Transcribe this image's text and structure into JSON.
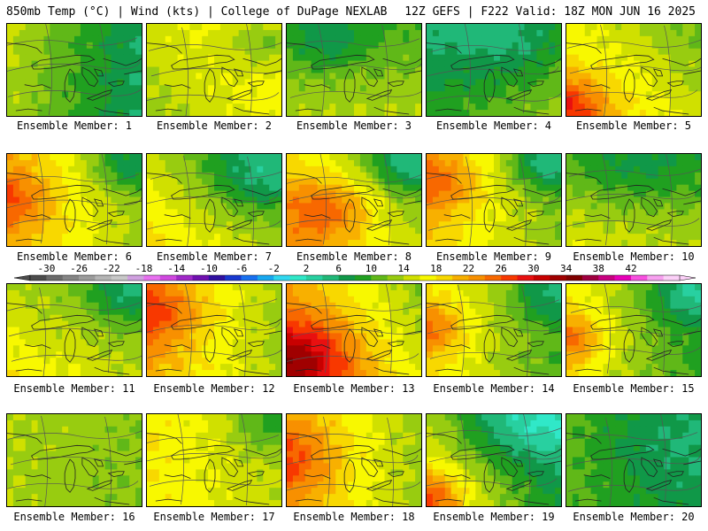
{
  "header": {
    "left": "850mb Temp (°C) | Wind (kts) | College of DuPage NEXLAB",
    "right": "12Z GEFS | F222 Valid: 18Z MON JUN 16 2025"
  },
  "members": [
    {
      "label": "Ensemble Member: 1",
      "base": 10,
      "grad": [
        -4,
        0
      ],
      "blobs": [
        [
          0.1,
          0.1,
          0.4,
          0.5
        ]
      ]
    },
    {
      "label": "Ensemble Member: 2",
      "base": 16,
      "grad": [
        2,
        -1
      ],
      "blobs": [
        [
          0.9,
          0.2,
          0.3,
          -6
        ]
      ]
    },
    {
      "label": "Ensemble Member: 3",
      "base": 12,
      "grad": [
        0,
        2
      ],
      "blobs": [
        [
          0.3,
          0.2,
          0.3,
          -4
        ]
      ]
    },
    {
      "label": "Ensemble Member: 4",
      "base": 9,
      "grad": [
        2,
        2
      ],
      "blobs": [
        [
          0.6,
          0.2,
          0.4,
          -3
        ]
      ]
    },
    {
      "label": "Ensemble Member: 5",
      "base": 16,
      "grad": [
        -3,
        2
      ],
      "blobs": [
        [
          0.0,
          0.9,
          0.3,
          8
        ]
      ]
    },
    {
      "label": "Ensemble Member: 6",
      "base": 17,
      "grad": [
        -4,
        0
      ],
      "blobs": [
        [
          0.0,
          0.5,
          0.3,
          6
        ],
        [
          0.9,
          0.1,
          0.3,
          -7
        ]
      ]
    },
    {
      "label": "Ensemble Member: 7",
      "base": 14,
      "grad": [
        -3,
        2
      ],
      "blobs": [
        [
          0.8,
          0.2,
          0.4,
          -6
        ]
      ]
    },
    {
      "label": "Ensemble Member: 8",
      "base": 16,
      "grad": [
        -4,
        2
      ],
      "blobs": [
        [
          0.3,
          0.6,
          0.35,
          7
        ],
        [
          0.9,
          0.1,
          0.3,
          -7
        ]
      ]
    },
    {
      "label": "Ensemble Member: 9",
      "base": 16,
      "grad": [
        -4,
        0
      ],
      "blobs": [
        [
          0.1,
          0.3,
          0.3,
          6
        ],
        [
          0.9,
          0.1,
          0.3,
          -8
        ]
      ]
    },
    {
      "label": "Ensemble Member: 10",
      "base": 13,
      "grad": [
        -1,
        2
      ],
      "blobs": [
        [
          0.5,
          0.1,
          0.5,
          -4
        ]
      ]
    },
    {
      "label": "Ensemble Member: 11",
      "base": 14,
      "grad": [
        -2,
        2
      ],
      "blobs": [
        [
          0.9,
          0.1,
          0.3,
          -5
        ]
      ]
    },
    {
      "label": "Ensemble Member: 12",
      "base": 17,
      "grad": [
        -4,
        0
      ],
      "blobs": [
        [
          0.0,
          0.3,
          0.4,
          7
        ]
      ]
    },
    {
      "label": "Ensemble Member: 13",
      "base": 19,
      "grad": [
        -5,
        2
      ],
      "blobs": [
        [
          0.1,
          0.8,
          0.4,
          9
        ]
      ]
    },
    {
      "label": "Ensemble Member: 14",
      "base": 14,
      "grad": [
        -4,
        0
      ],
      "blobs": [
        [
          0.0,
          0.5,
          0.3,
          7
        ],
        [
          0.9,
          0.1,
          0.3,
          -5
        ]
      ]
    },
    {
      "label": "Ensemble Member: 15",
      "base": 13,
      "grad": [
        -4,
        0
      ],
      "blobs": [
        [
          0.0,
          0.6,
          0.3,
          8
        ],
        [
          0.9,
          0.1,
          0.3,
          -6
        ]
      ]
    },
    {
      "label": "Ensemble Member: 16",
      "base": 13,
      "grad": [
        -1,
        0
      ],
      "blobs": []
    },
    {
      "label": "Ensemble Member: 17",
      "base": 16,
      "grad": [
        -2,
        0
      ],
      "blobs": [
        [
          0.9,
          0.1,
          0.3,
          -5
        ]
      ]
    },
    {
      "label": "Ensemble Member: 18",
      "base": 17,
      "grad": [
        -4,
        0
      ],
      "blobs": [
        [
          0.0,
          0.5,
          0.4,
          6
        ]
      ]
    },
    {
      "label": "Ensemble Member: 19",
      "base": 11,
      "grad": [
        -5,
        2
      ],
      "blobs": [
        [
          0.7,
          0.1,
          0.4,
          -5
        ],
        [
          0.0,
          0.9,
          0.3,
          9
        ]
      ]
    },
    {
      "label": "Ensemble Member: 20",
      "base": 9,
      "grad": [
        -2,
        0
      ],
      "blobs": [
        [
          0.7,
          0.3,
          0.5,
          -2
        ]
      ]
    }
  ],
  "colorbar": {
    "ticks": [
      "-30",
      "-26",
      "-22",
      "-18",
      "-14",
      "-10",
      "-6",
      "-2",
      "2",
      "6",
      "10",
      "14",
      "18",
      "22",
      "26",
      "30",
      "34",
      "38",
      "42"
    ],
    "min": -32,
    "step": 2,
    "colors": [
      "#4c4c4c",
      "#6b6b6b",
      "#858585",
      "#9c9c9c",
      "#b5b5b5",
      "#c8c8c8",
      "#d0a0e0",
      "#e870f0",
      "#d048e0",
      "#a028c8",
      "#7010b0",
      "#3010a0",
      "#1838d0",
      "#1870f0",
      "#18a8f0",
      "#30d8f0",
      "#30e8c8",
      "#28d0a0",
      "#20b878",
      "#109848",
      "#20a020",
      "#60b818",
      "#98cc10",
      "#d0e000",
      "#f8f800",
      "#f8d800",
      "#f8b000",
      "#f89000",
      "#f86800",
      "#f83800",
      "#e81010",
      "#c80000",
      "#a00000",
      "#800000",
      "#a00040",
      "#c80080",
      "#e800b8",
      "#f850e0",
      "#f8a0f0",
      "#fcd0f8"
    ]
  }
}
